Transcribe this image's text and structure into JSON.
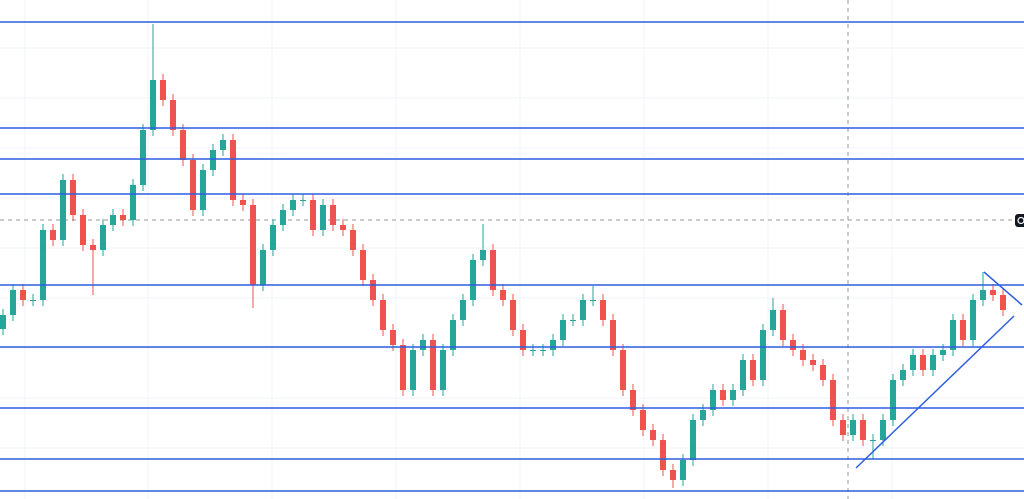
{
  "chart_data": {
    "type": "candlestick",
    "up_color": "#26a69a",
    "down_color": "#ef5350",
    "level_color": "#2f5fe0",
    "xlim": [
      -0.3,
      102.1
    ],
    "ylim": [
      0,
      499
    ],
    "open": [
      170,
      184,
      209,
      199,
      199,
      269,
      259,
      319,
      284,
      254,
      249,
      274,
      284,
      279,
      314,
      369,
      419,
      399,
      369,
      339,
      289,
      329,
      349,
      359,
      299,
      294,
      214,
      249,
      274,
      289,
      299,
      299,
      269,
      294,
      274,
      269,
      249,
      219,
      199,
      169,
      154,
      109,
      149,
      159,
      109,
      149,
      179,
      199,
      239,
      249,
      209,
      199,
      169,
      149,
      149,
      149,
      159,
      179,
      179,
      199,
      199,
      179,
      149,
      109,
      89,
      69,
      59,
      29,
      19,
      39,
      79,
      89,
      109,
      99,
      109,
      139,
      119,
      169,
      189,
      159,
      149,
      139,
      134,
      119,
      79,
      64,
      79,
      59,
      59,
      79,
      119,
      129,
      144,
      129,
      144,
      149,
      179,
      159,
      199,
      209,
      204
    ],
    "high": [
      190,
      215,
      215,
      205,
      275,
      275,
      325,
      325,
      290,
      260,
      280,
      290,
      290,
      320,
      375,
      475,
      425,
      405,
      375,
      345,
      335,
      355,
      365,
      365,
      305,
      300,
      255,
      280,
      295,
      305,
      305,
      305,
      300,
      300,
      280,
      275,
      255,
      225,
      205,
      175,
      160,
      155,
      165,
      165,
      155,
      185,
      205,
      245,
      275,
      255,
      215,
      205,
      175,
      155,
      155,
      165,
      185,
      185,
      205,
      213,
      205,
      185,
      155,
      115,
      95,
      75,
      65,
      35,
      45,
      85,
      95,
      115,
      115,
      115,
      145,
      145,
      175,
      201,
      195,
      165,
      155,
      145,
      140,
      125,
      85,
      85,
      85,
      65,
      85,
      125,
      135,
      150,
      150,
      150,
      155,
      185,
      185,
      205,
      227,
      215,
      210
    ],
    "low": [
      164,
      178,
      193,
      193,
      193,
      253,
      253,
      278,
      248,
      204,
      243,
      268,
      273,
      273,
      308,
      363,
      393,
      363,
      333,
      283,
      283,
      323,
      343,
      293,
      288,
      191,
      208,
      243,
      268,
      283,
      293,
      263,
      263,
      268,
      263,
      243,
      213,
      193,
      163,
      148,
      103,
      103,
      143,
      103,
      103,
      143,
      173,
      193,
      233,
      203,
      193,
      163,
      143,
      143,
      143,
      143,
      153,
      173,
      173,
      193,
      173,
      143,
      103,
      83,
      63,
      53,
      23,
      11,
      13,
      33,
      73,
      83,
      93,
      93,
      103,
      113,
      113,
      163,
      153,
      143,
      133,
      128,
      113,
      73,
      58,
      58,
      53,
      40,
      53,
      73,
      113,
      123,
      123,
      123,
      138,
      143,
      153,
      153,
      193,
      198,
      183
    ],
    "close": [
      184,
      209,
      199,
      199,
      269,
      259,
      319,
      284,
      254,
      249,
      274,
      284,
      279,
      314,
      369,
      419,
      399,
      369,
      339,
      289,
      329,
      349,
      359,
      299,
      294,
      214,
      249,
      274,
      289,
      299,
      299,
      269,
      294,
      274,
      269,
      249,
      219,
      199,
      169,
      154,
      109,
      149,
      159,
      109,
      149,
      179,
      199,
      239,
      249,
      209,
      199,
      169,
      149,
      149,
      149,
      159,
      179,
      179,
      199,
      199,
      179,
      149,
      109,
      89,
      69,
      59,
      29,
      19,
      39,
      79,
      89,
      109,
      99,
      109,
      139,
      119,
      169,
      189,
      159,
      149,
      139,
      134,
      119,
      79,
      64,
      79,
      59,
      59,
      79,
      119,
      129,
      144,
      129,
      144,
      149,
      179,
      159,
      199,
      209,
      204,
      189
    ],
    "levels": [
      477,
      371,
      340,
      305,
      214,
      152,
      91,
      40,
      8
    ],
    "trend_lines": [
      {
        "x": [
          85.3,
          101.1
        ],
        "y": [
          31,
          183
        ]
      },
      {
        "x": [
          98.1,
          101.9
        ],
        "y": [
          227,
          194
        ]
      }
    ],
    "crosshair": {
      "x": 84.5,
      "y": 279
    }
  }
}
